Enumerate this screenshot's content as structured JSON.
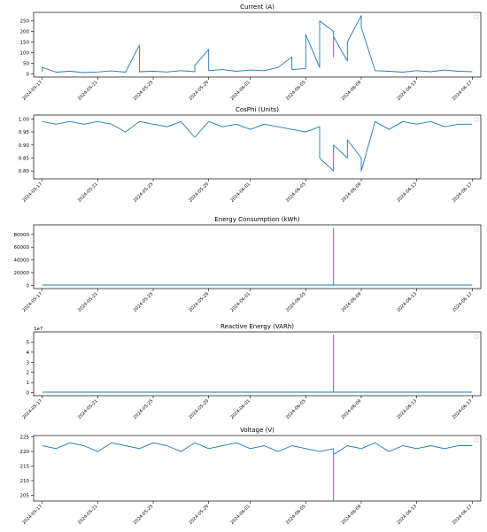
{
  "chart_data": [
    {
      "type": "line",
      "title": "Current (A)",
      "xlabel": "",
      "ylabel": "",
      "x_range": [
        "2024-05-17",
        "2024-06-17"
      ],
      "ylim": [
        -15,
        290
      ],
      "y_ticks": [
        0,
        50,
        100,
        150,
        200,
        250
      ],
      "y_tick_labels": [
        "0",
        "50",
        "100",
        "150",
        "200",
        "250"
      ],
      "x_ticks": [
        "2024-05-17",
        "2024-05-21",
        "2024-05-25",
        "2024-05-29",
        "2024-06-01",
        "2024-06-05",
        "2024-06-09",
        "2024-06-13",
        "2024-06-17"
      ],
      "grid": false,
      "series": [
        {
          "color": "#1f77b4",
          "points": [
            [
              "2024-05-17",
              10
            ],
            [
              "2024-05-17",
              30
            ],
            [
              "2024-05-18",
              8
            ],
            [
              "2024-05-19",
              12
            ],
            [
              "2024-05-20",
              6
            ],
            [
              "2024-05-21",
              9
            ],
            [
              "2024-05-22",
              14
            ],
            [
              "2024-05-23",
              8
            ],
            [
              "2024-05-24",
              135
            ],
            [
              "2024-05-24",
              10
            ],
            [
              "2024-05-25",
              12
            ],
            [
              "2024-05-26",
              9
            ],
            [
              "2024-05-27",
              15
            ],
            [
              "2024-05-28",
              10
            ],
            [
              "2024-05-28",
              40
            ],
            [
              "2024-05-29",
              115
            ],
            [
              "2024-05-29",
              15
            ],
            [
              "2024-05-30",
              20
            ],
            [
              "2024-05-31",
              12
            ],
            [
              "2024-06-01",
              18
            ],
            [
              "2024-06-02",
              15
            ],
            [
              "2024-06-03",
              30
            ],
            [
              "2024-06-04",
              80
            ],
            [
              "2024-06-04",
              20
            ],
            [
              "2024-06-05",
              25
            ],
            [
              "2024-06-05",
              185
            ],
            [
              "2024-06-06",
              30
            ],
            [
              "2024-06-06",
              250
            ],
            [
              "2024-06-07",
              200
            ],
            [
              "2024-06-07",
              80
            ],
            [
              "2024-06-07",
              175
            ],
            [
              "2024-06-08",
              60
            ],
            [
              "2024-06-08",
              150
            ],
            [
              "2024-06-09",
              275
            ],
            [
              "2024-06-09",
              220
            ],
            [
              "2024-06-10",
              15
            ],
            [
              "2024-06-11",
              12
            ],
            [
              "2024-06-12",
              8
            ],
            [
              "2024-06-13",
              15
            ],
            [
              "2024-06-14",
              10
            ],
            [
              "2024-06-15",
              18
            ],
            [
              "2024-06-16",
              12
            ],
            [
              "2024-06-17",
              10
            ]
          ]
        }
      ]
    },
    {
      "type": "line",
      "title": "CosPhi (Units)",
      "xlabel": "",
      "ylabel": "",
      "x_range": [
        "2024-05-17",
        "2024-06-17"
      ],
      "ylim": [
        0.77,
        1.015
      ],
      "y_ticks": [
        0.8,
        0.85,
        0.9,
        0.95,
        1.0
      ],
      "y_tick_labels": [
        "0.80",
        "0.85",
        "0.90",
        "0.95",
        "1.00"
      ],
      "x_ticks": [
        "2024-05-17",
        "2024-05-21",
        "2024-05-25",
        "2024-05-29",
        "2024-06-01",
        "2024-06-05",
        "2024-06-09",
        "2024-06-13",
        "2024-06-17"
      ],
      "grid": false,
      "series": [
        {
          "color": "#1f77b4",
          "points": [
            [
              "2024-05-17",
              0.99
            ],
            [
              "2024-05-18",
              0.98
            ],
            [
              "2024-05-19",
              0.99
            ],
            [
              "2024-05-20",
              0.98
            ],
            [
              "2024-05-21",
              0.99
            ],
            [
              "2024-05-22",
              0.98
            ],
            [
              "2024-05-23",
              0.95
            ],
            [
              "2024-05-24",
              0.99
            ],
            [
              "2024-05-25",
              0.98
            ],
            [
              "2024-05-26",
              0.97
            ],
            [
              "2024-05-27",
              0.99
            ],
            [
              "2024-05-28",
              0.93
            ],
            [
              "2024-05-29",
              0.99
            ],
            [
              "2024-05-30",
              0.97
            ],
            [
              "2024-05-31",
              0.98
            ],
            [
              "2024-06-01",
              0.96
            ],
            [
              "2024-06-02",
              0.98
            ],
            [
              "2024-06-03",
              0.97
            ],
            [
              "2024-06-04",
              0.96
            ],
            [
              "2024-06-05",
              0.95
            ],
            [
              "2024-06-06",
              0.97
            ],
            [
              "2024-06-06",
              0.85
            ],
            [
              "2024-06-07",
              0.8
            ],
            [
              "2024-06-07",
              0.9
            ],
            [
              "2024-06-08",
              0.85
            ],
            [
              "2024-06-08",
              0.92
            ],
            [
              "2024-06-09",
              0.85
            ],
            [
              "2024-06-09",
              0.8
            ],
            [
              "2024-06-10",
              0.99
            ],
            [
              "2024-06-11",
              0.96
            ],
            [
              "2024-06-12",
              0.99
            ],
            [
              "2024-06-13",
              0.98
            ],
            [
              "2024-06-14",
              0.99
            ],
            [
              "2024-06-15",
              0.97
            ],
            [
              "2024-06-16",
              0.98
            ],
            [
              "2024-06-17",
              0.98
            ]
          ]
        }
      ]
    },
    {
      "type": "line",
      "title": "Energy Consumption (kWh)",
      "xlabel": "",
      "ylabel": "",
      "x_range": [
        "2024-05-17",
        "2024-06-17"
      ],
      "ylim": [
        -5000,
        95000
      ],
      "y_ticks": [
        0,
        20000,
        40000,
        60000,
        80000
      ],
      "y_tick_labels": [
        "0",
        "20000",
        "40000",
        "60000",
        "80000"
      ],
      "x_ticks": [
        "2024-05-17",
        "2024-05-21",
        "2024-05-25",
        "2024-05-29",
        "2024-06-01",
        "2024-06-05",
        "2024-06-09",
        "2024-06-13",
        "2024-06-17"
      ],
      "grid": false,
      "series": [
        {
          "color": "#1f77b4",
          "points": [
            [
              "2024-05-17",
              500
            ],
            [
              "2024-06-07",
              500
            ],
            [
              "2024-06-07",
              90000
            ],
            [
              "2024-06-07",
              500
            ],
            [
              "2024-06-17",
              500
            ]
          ]
        }
      ]
    },
    {
      "type": "line",
      "title": "Reactive Energy (VARh)",
      "xlabel": "",
      "ylabel": "",
      "offset_label": "1e7",
      "x_range": [
        "2024-05-17",
        "2024-06-17"
      ],
      "ylim": [
        -0.3,
        6.0
      ],
      "y_ticks": [
        0,
        1,
        2,
        3,
        4,
        5
      ],
      "y_tick_labels": [
        "0",
        "1",
        "2",
        "3",
        "4",
        "5"
      ],
      "x_ticks": [
        "2024-05-17",
        "2024-05-21",
        "2024-05-25",
        "2024-05-29",
        "2024-06-01",
        "2024-06-05",
        "2024-06-09",
        "2024-06-13",
        "2024-06-17"
      ],
      "grid": false,
      "series": [
        {
          "color": "#1f77b4",
          "points": [
            [
              "2024-05-17",
              0.05
            ],
            [
              "2024-06-07",
              0.05
            ],
            [
              "2024-06-07",
              5.7
            ],
            [
              "2024-06-07",
              0.05
            ],
            [
              "2024-06-17",
              0.05
            ]
          ]
        }
      ]
    },
    {
      "type": "line",
      "title": "Voltage (V)",
      "xlabel": "",
      "ylabel": "",
      "x_range": [
        "2024-05-17",
        "2024-06-17"
      ],
      "ylim": [
        203,
        225.5
      ],
      "y_ticks": [
        205,
        210,
        215,
        220,
        225
      ],
      "y_tick_labels": [
        "205",
        "210",
        "215",
        "220",
        "225"
      ],
      "x_ticks": [
        "2024-05-17",
        "2024-05-21",
        "2024-05-25",
        "2024-05-29",
        "2024-06-01",
        "2024-06-05",
        "2024-06-09",
        "2024-06-13",
        "2024-06-17"
      ],
      "grid": false,
      "series": [
        {
          "color": "#1f77b4",
          "points": [
            [
              "2024-05-17",
              222
            ],
            [
              "2024-05-18",
              221
            ],
            [
              "2024-05-19",
              223
            ],
            [
              "2024-05-20",
              222
            ],
            [
              "2024-05-21",
              220
            ],
            [
              "2024-05-22",
              223
            ],
            [
              "2024-05-23",
              222
            ],
            [
              "2024-05-24",
              221
            ],
            [
              "2024-05-25",
              223
            ],
            [
              "2024-05-26",
              222
            ],
            [
              "2024-05-27",
              220
            ],
            [
              "2024-05-28",
              223
            ],
            [
              "2024-05-29",
              221
            ],
            [
              "2024-05-30",
              222
            ],
            [
              "2024-05-31",
              223
            ],
            [
              "2024-06-01",
              221
            ],
            [
              "2024-06-02",
              222
            ],
            [
              "2024-06-03",
              220
            ],
            [
              "2024-06-04",
              222
            ],
            [
              "2024-06-05",
              221
            ],
            [
              "2024-06-06",
              220
            ],
            [
              "2024-06-07",
              221
            ],
            [
              "2024-06-07",
              203
            ],
            [
              "2024-06-07",
              219
            ],
            [
              "2024-06-08",
              222
            ],
            [
              "2024-06-09",
              221
            ],
            [
              "2024-06-10",
              223
            ],
            [
              "2024-06-11",
              220
            ],
            [
              "2024-06-12",
              222
            ],
            [
              "2024-06-13",
              221
            ],
            [
              "2024-06-14",
              222
            ],
            [
              "2024-06-15",
              221
            ],
            [
              "2024-06-16",
              222
            ],
            [
              "2024-06-17",
              222
            ]
          ]
        }
      ]
    }
  ]
}
